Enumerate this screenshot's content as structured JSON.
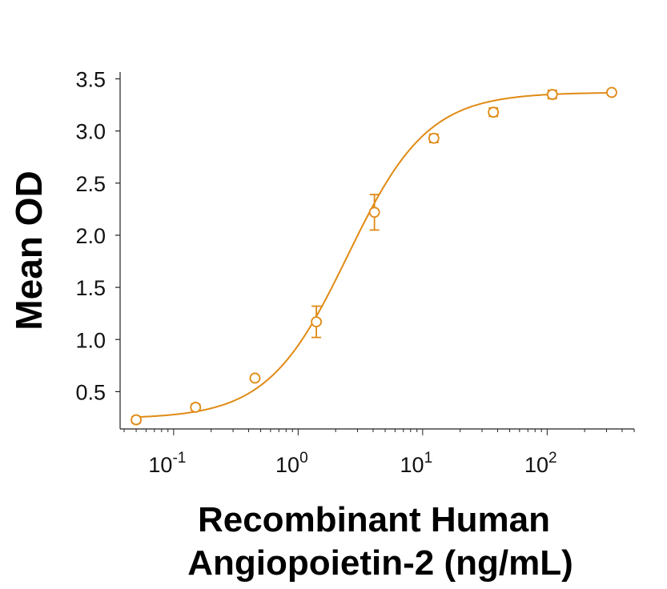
{
  "chart_data": {
    "type": "scatter",
    "xlabel_line1": "Recombinant Human",
    "xlabel_line2": "Angiopoietin-2 (ng/mL)",
    "ylabel": "Mean OD",
    "x_scale": "log",
    "xlim": [
      0.04,
      500
    ],
    "ylim": [
      0.15,
      3.55
    ],
    "y_ticks": [
      {
        "value": 0.5,
        "label": "0.5"
      },
      {
        "value": 1.0,
        "label": "1.0"
      },
      {
        "value": 1.5,
        "label": "1.5"
      },
      {
        "value": 2.0,
        "label": "2.0"
      },
      {
        "value": 2.5,
        "label": "2.5"
      },
      {
        "value": 3.0,
        "label": "3.0"
      },
      {
        "value": 3.5,
        "label": "3.5"
      }
    ],
    "x_ticks": [
      {
        "value": 0.1,
        "base": "10",
        "exp": "-1"
      },
      {
        "value": 1,
        "base": "10",
        "exp": "0"
      },
      {
        "value": 10,
        "base": "10",
        "exp": "1"
      },
      {
        "value": 100,
        "base": "10",
        "exp": "2"
      }
    ],
    "series": [
      {
        "color": "#E08A14",
        "marker": "open-circle",
        "x": [
          0.05,
          0.15,
          0.45,
          1.4,
          4.1,
          12.3,
          37,
          110,
          330
        ],
        "y": [
          0.23,
          0.35,
          0.63,
          1.17,
          2.22,
          2.93,
          3.18,
          3.35,
          3.37
        ],
        "err": [
          0.03,
          0.03,
          0.02,
          0.15,
          0.17,
          0.04,
          0.04,
          0.04,
          0.02
        ]
      }
    ],
    "fit": {
      "type": "4PL",
      "bottom": 0.24,
      "top": 3.37,
      "ec50": 2.5,
      "hill": 1.35
    },
    "grid": false,
    "legend": "none"
  }
}
